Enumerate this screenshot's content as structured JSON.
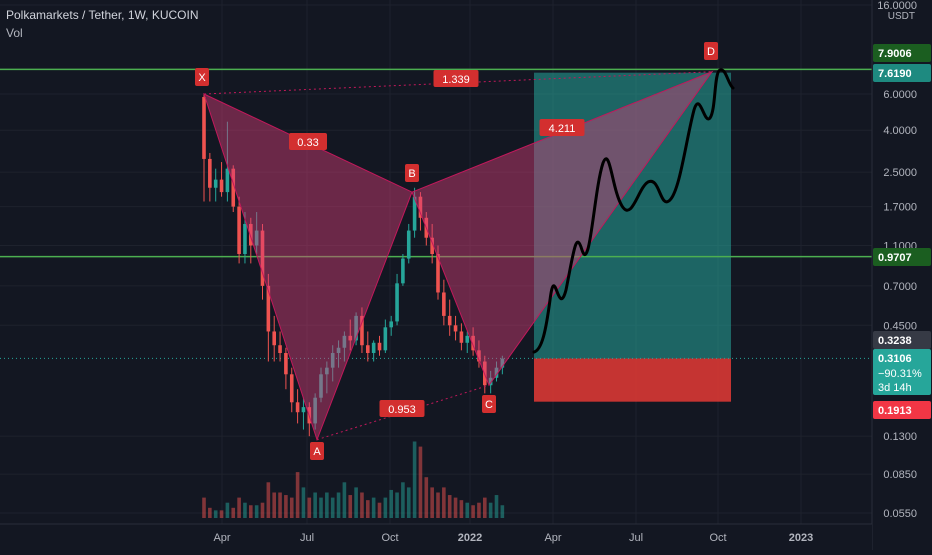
{
  "header": {
    "symbol_line": "Polkamarkets / Tether, 1W, KUCOIN",
    "volume_label": "Vol"
  },
  "price_axis": {
    "currency": "USDT",
    "ticks": [
      "16.0000",
      "6.0000",
      "4.0000",
      "2.5000",
      "1.7000",
      "1.1000",
      "0.7000",
      "0.4500",
      "0.1300",
      "0.0850",
      "0.0550"
    ]
  },
  "time_axis": {
    "ticks": [
      "Apr",
      "Jul",
      "Oct",
      "2022",
      "Apr",
      "Jul",
      "Oct",
      "2023"
    ]
  },
  "price_tags": [
    {
      "value": "7.9006",
      "color": "#1b5e20"
    },
    {
      "value": "7.6190",
      "color": "#1e8a80"
    },
    {
      "value": "0.9707",
      "color": "#1b5e20"
    },
    {
      "value": "0.3238",
      "color": "#363a45"
    },
    {
      "value": "0.1913",
      "color": "#f23645"
    }
  ],
  "current_price": {
    "price": "0.3106",
    "change": "−90.31%",
    "countdown": "3d 14h",
    "color": "#26a69a"
  },
  "pattern": {
    "points": [
      {
        "label": "X",
        "price": 6.0
      },
      {
        "label": "A",
        "price": 0.125
      },
      {
        "label": "B",
        "price": 2.0
      },
      {
        "label": "C",
        "price": 0.23
      },
      {
        "label": "D",
        "price": 7.7
      }
    ],
    "ratios": [
      {
        "label": "0.33"
      },
      {
        "label": "1.339"
      },
      {
        "label": "0.953"
      },
      {
        "label": "4.211"
      }
    ]
  },
  "horizontal_levels": [
    {
      "price": 7.9006,
      "color": "#4caf50"
    },
    {
      "price": 0.9707,
      "color": "#4caf50"
    }
  ],
  "position": {
    "entry": 0.3106,
    "target": 7.619,
    "stop": 0.1913
  },
  "colors": {
    "bg": "#131722",
    "up": "#26a69a",
    "down": "#ef5350",
    "pattern_fill": "rgba(214,62,120,0.45)",
    "pattern_line": "#c2185b",
    "label_bg": "#d32f2f",
    "target_zone": "rgba(38,166,154,0.55)",
    "stop_zone": "rgba(229,57,53,0.85)"
  },
  "chart_data": {
    "type": "candlestick",
    "title": "Polkamarkets / Tether, 1W, KUCOIN",
    "yscale": "log",
    "ylim": [
      0.05,
      16
    ],
    "series": [
      {
        "name": "PolkamarketsTether",
        "values": [
          [
            5.8,
            6.0,
            1.8,
            2.9
          ],
          [
            2.9,
            3.1,
            1.8,
            2.1
          ],
          [
            2.1,
            2.6,
            1.8,
            2.3
          ],
          [
            2.3,
            2.8,
            1.9,
            2.0
          ],
          [
            2.0,
            4.4,
            1.8,
            2.6
          ],
          [
            2.6,
            2.7,
            1.6,
            1.7
          ],
          [
            1.7,
            1.9,
            0.9,
            1.0
          ],
          [
            1.0,
            1.6,
            0.9,
            1.4
          ],
          [
            1.4,
            1.5,
            0.9,
            1.1
          ],
          [
            1.1,
            1.6,
            1.0,
            1.3
          ],
          [
            1.3,
            1.4,
            0.6,
            0.7
          ],
          [
            0.7,
            0.8,
            0.3,
            0.42
          ],
          [
            0.42,
            0.5,
            0.3,
            0.36
          ],
          [
            0.36,
            0.42,
            0.3,
            0.33
          ],
          [
            0.33,
            0.35,
            0.22,
            0.26
          ],
          [
            0.26,
            0.28,
            0.17,
            0.19
          ],
          [
            0.19,
            0.22,
            0.15,
            0.17
          ],
          [
            0.17,
            0.2,
            0.14,
            0.18
          ],
          [
            0.18,
            0.19,
            0.13,
            0.15
          ],
          [
            0.15,
            0.21,
            0.14,
            0.2
          ],
          [
            0.2,
            0.28,
            0.19,
            0.26
          ],
          [
            0.26,
            0.3,
            0.21,
            0.28
          ],
          [
            0.28,
            0.36,
            0.24,
            0.33
          ],
          [
            0.33,
            0.38,
            0.28,
            0.35
          ],
          [
            0.35,
            0.42,
            0.3,
            0.4
          ],
          [
            0.4,
            0.48,
            0.34,
            0.38
          ],
          [
            0.38,
            0.52,
            0.36,
            0.5
          ],
          [
            0.5,
            0.55,
            0.33,
            0.36
          ],
          [
            0.36,
            0.42,
            0.3,
            0.33
          ],
          [
            0.33,
            0.38,
            0.3,
            0.37
          ],
          [
            0.37,
            0.4,
            0.32,
            0.34
          ],
          [
            0.34,
            0.48,
            0.33,
            0.44
          ],
          [
            0.44,
            0.5,
            0.4,
            0.47
          ],
          [
            0.47,
            0.8,
            0.45,
            0.72
          ],
          [
            0.72,
            1.0,
            0.7,
            0.95
          ],
          [
            0.95,
            1.4,
            0.9,
            1.3
          ],
          [
            1.3,
            2.1,
            1.2,
            1.9
          ],
          [
            1.9,
            2.0,
            1.3,
            1.5
          ],
          [
            1.5,
            1.6,
            1.1,
            1.2
          ],
          [
            1.2,
            1.4,
            0.9,
            1.0
          ],
          [
            1.0,
            1.1,
            0.6,
            0.65
          ],
          [
            0.65,
            0.75,
            0.45,
            0.5
          ],
          [
            0.5,
            0.6,
            0.4,
            0.45
          ],
          [
            0.45,
            0.5,
            0.38,
            0.42
          ],
          [
            0.42,
            0.46,
            0.34,
            0.37
          ],
          [
            0.37,
            0.42,
            0.33,
            0.4
          ],
          [
            0.4,
            0.44,
            0.32,
            0.34
          ],
          [
            0.34,
            0.38,
            0.28,
            0.3
          ],
          [
            0.3,
            0.32,
            0.21,
            0.23
          ],
          [
            0.23,
            0.27,
            0.21,
            0.25
          ],
          [
            0.25,
            0.3,
            0.24,
            0.28
          ],
          [
            0.28,
            0.32,
            0.26,
            0.31
          ]
        ]
      }
    ],
    "volume": [
      8,
      4,
      3,
      3,
      6,
      4,
      8,
      6,
      5,
      5,
      6,
      14,
      10,
      10,
      9,
      8,
      18,
      12,
      8,
      10,
      8,
      10,
      8,
      10,
      14,
      9,
      12,
      10,
      7,
      8,
      6,
      8,
      11,
      10,
      14,
      12,
      30,
      28,
      16,
      12,
      10,
      12,
      9,
      8,
      7,
      6,
      5,
      6,
      8,
      6,
      9,
      5
    ]
  }
}
